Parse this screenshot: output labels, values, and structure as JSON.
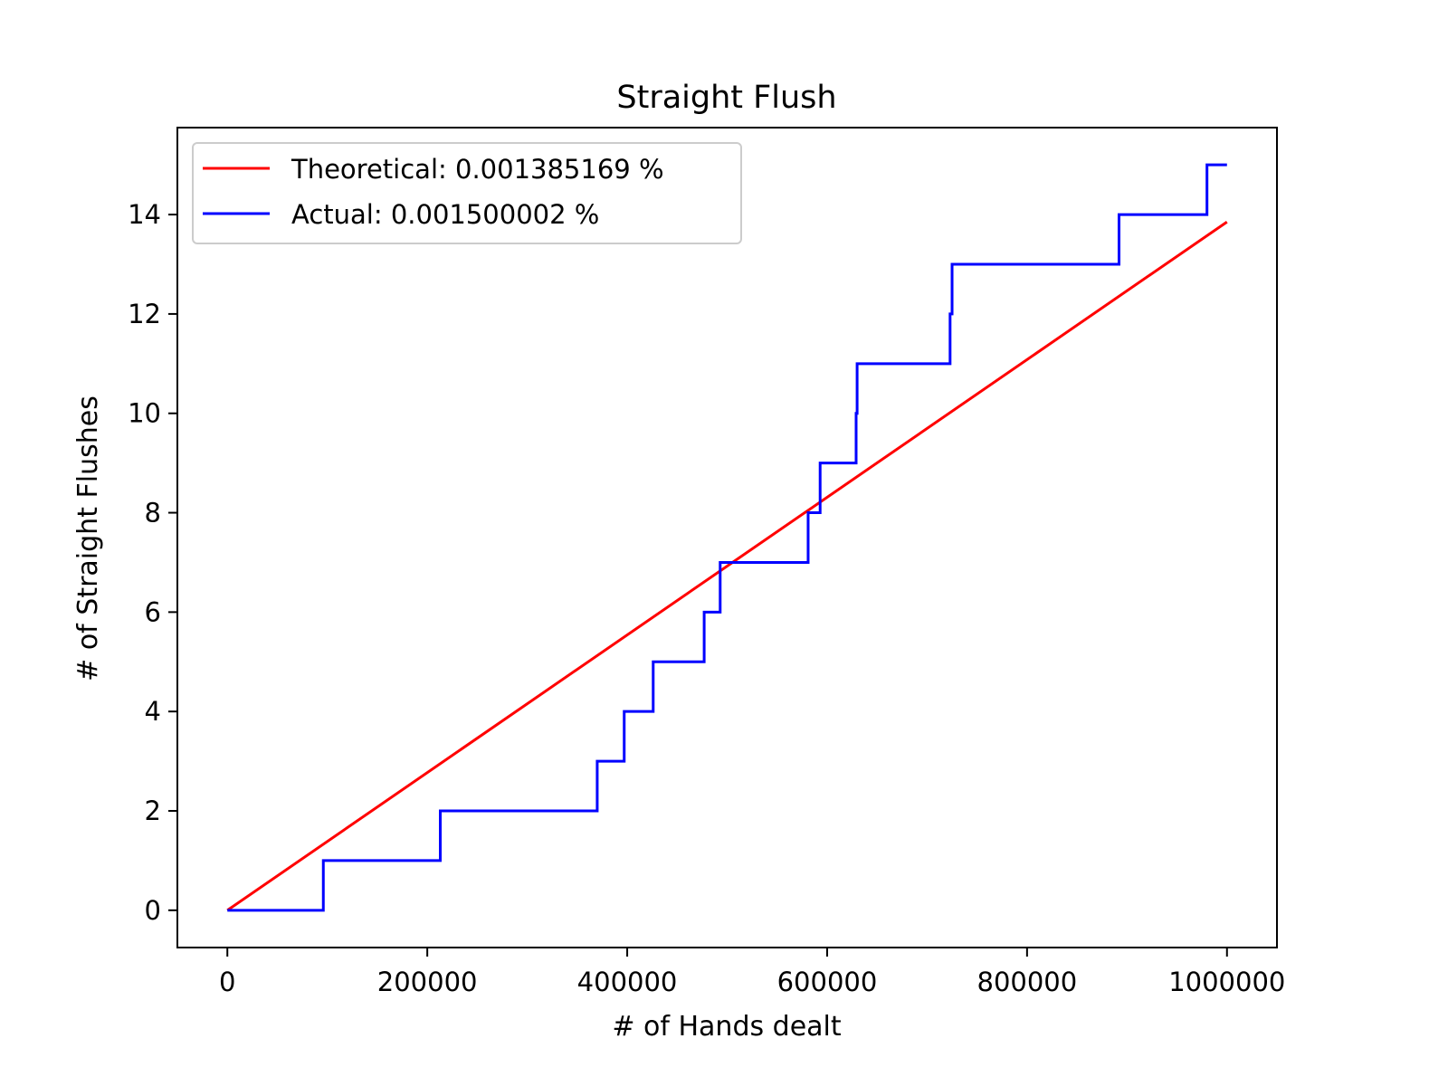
{
  "chart_data": {
    "type": "line",
    "title": "Straight Flush",
    "xlabel": "# of Hands dealt",
    "ylabel": "# of Straight Flushes",
    "xlim": [
      -50000,
      1050000
    ],
    "ylim": [
      -0.75,
      15.75
    ],
    "xticks": [
      0,
      200000,
      400000,
      600000,
      800000,
      1000000
    ],
    "xtick_labels": [
      "0",
      "200000",
      "400000",
      "600000",
      "800000",
      "1000000"
    ],
    "yticks": [
      0,
      2,
      4,
      6,
      8,
      10,
      12,
      14
    ],
    "ytick_labels": [
      "0",
      "2",
      "4",
      "6",
      "8",
      "10",
      "12",
      "14"
    ],
    "grid": false,
    "legend_position": "top-left",
    "series": [
      {
        "name": "Theoretical: 0.001385169 %",
        "color": "#ff0000",
        "step": false,
        "points": [
          [
            0,
            0
          ],
          [
            1000000,
            13.85169
          ]
        ]
      },
      {
        "name": "Actual: 0.001500002 %",
        "color": "#0000ff",
        "step": true,
        "points": [
          [
            0,
            0
          ],
          [
            96000,
            1
          ],
          [
            213000,
            2
          ],
          [
            370000,
            3
          ],
          [
            397000,
            4
          ],
          [
            426000,
            5
          ],
          [
            477000,
            6
          ],
          [
            493000,
            7
          ],
          [
            581000,
            8
          ],
          [
            593000,
            9
          ],
          [
            629000,
            10
          ],
          [
            630000,
            11
          ],
          [
            723000,
            12
          ],
          [
            725000,
            13
          ],
          [
            892000,
            14
          ],
          [
            980000,
            15
          ],
          [
            1000000,
            15
          ]
        ]
      }
    ]
  }
}
